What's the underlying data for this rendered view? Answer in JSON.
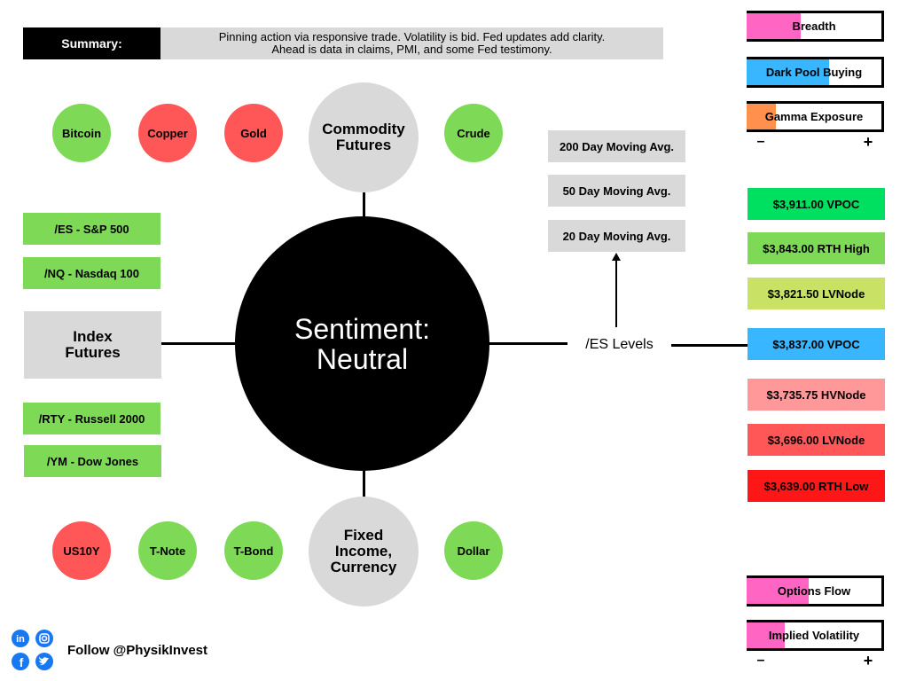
{
  "summary": {
    "label": "Summary:",
    "lines": [
      "Pinning action via responsive trade. Volatility is bid. Fed updates add clarity.",
      "Ahead is data in claims, PMI, and some Fed testimony."
    ]
  },
  "center": {
    "lines": [
      "Sentiment:",
      "Neutral"
    ]
  },
  "commodity": {
    "lines": [
      "Commodity",
      "Futures"
    ],
    "items": [
      {
        "label": "Bitcoin",
        "color": "#7ed957"
      },
      {
        "label": "Copper",
        "color": "#ff5757"
      },
      {
        "label": "Gold",
        "color": "#ff5757"
      },
      {
        "label": "Crude",
        "color": "#7ed957"
      }
    ]
  },
  "fixed_income": {
    "lines": [
      "Fixed",
      "Income,",
      "Currency"
    ],
    "items": [
      {
        "label": "US10Y",
        "color": "#ff5757"
      },
      {
        "label": "T-Note",
        "color": "#7ed957"
      },
      {
        "label": "T-Bond",
        "color": "#7ed957"
      },
      {
        "label": "Dollar",
        "color": "#7ed957"
      }
    ]
  },
  "index": {
    "lines": [
      "Index",
      "Futures"
    ],
    "items": [
      {
        "label": "/ES - S&P 500",
        "color": "#7ed957"
      },
      {
        "label": "/NQ - Nasdaq 100",
        "color": "#7ed957"
      },
      {
        "label": "/RTY - Russell 2000",
        "color": "#7ed957"
      },
      {
        "label": "/YM - Dow Jones",
        "color": "#7ed957"
      }
    ]
  },
  "es_levels": {
    "label": "/ES Levels",
    "moving_averages": [
      "200 Day Moving Avg.",
      "50 Day Moving Avg.",
      "20 Day Moving Avg."
    ],
    "levels": [
      {
        "label": "$3,911.00 VPOC",
        "color": "#00e060"
      },
      {
        "label": "$3,843.00 RTH High",
        "color": "#7ed957"
      },
      {
        "label": "$3,821.50 LVNode",
        "color": "#c9e265"
      },
      {
        "label": "$3,837.00 VPOC",
        "color": "#38b6ff"
      },
      {
        "label": "$3,735.75 HVNode",
        "color": "#ff9999"
      },
      {
        "label": "$3,696.00 LVNode",
        "color": "#ff5757"
      },
      {
        "label": "$3,639.00 RTH Low",
        "color": "#ff1616"
      }
    ]
  },
  "gauges_top": {
    "items": [
      {
        "label": "Breadth",
        "fill": 0.4,
        "color": "#ff66c4"
      },
      {
        "label": "Dark Pool Buying",
        "fill": 0.61,
        "color": "#38b6ff"
      },
      {
        "label": "Gamma Exposure",
        "fill": 0.22,
        "color": "#ff914d"
      }
    ],
    "min": "–",
    "max": "+"
  },
  "gauges_bottom": {
    "items": [
      {
        "label": "Options Flow",
        "fill": 0.46,
        "color": "#ff66c4"
      },
      {
        "label": "Implied Volatility",
        "fill": 0.28,
        "color": "#ff66c4"
      }
    ],
    "min": "–",
    "max": "+"
  },
  "footer": {
    "follow": "Follow @PhysikInvest"
  }
}
